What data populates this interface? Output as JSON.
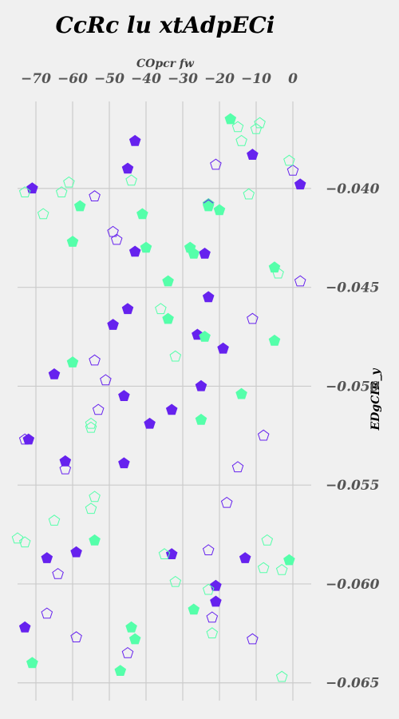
{
  "chart_data": {
    "type": "scatter",
    "title": "CcRc lu xtAdpECi",
    "xlabel": "COpcr fw",
    "ylabel": "EDgCIR_y",
    "xlim": [
      -75,
      5
    ],
    "ylim": [
      -0.0659,
      -0.0356
    ],
    "x_ticks": [
      -70,
      -60,
      -50,
      -40,
      -30,
      -20,
      -10,
      0
    ],
    "x_tick_labels": [
      "−70",
      "−60",
      "−50",
      "−40",
      "−30",
      "−20",
      "−10",
      "0"
    ],
    "y_ticks": [
      -0.04,
      -0.045,
      -0.05,
      -0.055,
      -0.06,
      -0.065
    ],
    "y_tick_labels": [
      "−0.040",
      "−0.045",
      "−0.050",
      "−0.055",
      "−0.060",
      "−0.065"
    ],
    "x_axis_position": "top",
    "y_axis_position": "right",
    "grid": true,
    "marker": "pentagon",
    "series": [
      {
        "color": "#6622ee",
        "filled": true,
        "points": [
          [
            -43,
            -0.0376
          ],
          [
            -45,
            -0.039
          ],
          [
            -71,
            -0.04
          ],
          [
            -11,
            -0.0383
          ],
          [
            2,
            -0.0398
          ],
          [
            -23,
            -0.0408
          ],
          [
            -43,
            -0.0432
          ],
          [
            -24,
            -0.0433
          ],
          [
            -23,
            -0.0455
          ],
          [
            -45,
            -0.0461
          ],
          [
            -49,
            -0.0469
          ],
          [
            -26,
            -0.0474
          ],
          [
            -19,
            -0.0481
          ],
          [
            -65,
            -0.0494
          ],
          [
            -25,
            -0.05
          ],
          [
            -46,
            -0.0505
          ],
          [
            -33,
            -0.0512
          ],
          [
            -39,
            -0.0519
          ],
          [
            -72,
            -0.0527
          ],
          [
            -62,
            -0.0538
          ],
          [
            -46,
            -0.0539
          ],
          [
            -67,
            -0.0587
          ],
          [
            -59,
            -0.0584
          ],
          [
            -33,
            -0.0585
          ],
          [
            -13,
            -0.0587
          ],
          [
            -21,
            -0.0601
          ],
          [
            -21,
            -0.0609
          ],
          [
            -73,
            -0.0622
          ]
        ]
      },
      {
        "color": "#6622ee",
        "filled": false,
        "points": [
          [
            -21,
            -0.0388
          ],
          [
            0,
            -0.0391
          ],
          [
            -54,
            -0.0404
          ],
          [
            -49,
            -0.0422
          ],
          [
            -48,
            -0.0426
          ],
          [
            2,
            -0.0447
          ],
          [
            -11,
            -0.0466
          ],
          [
            -54,
            -0.0487
          ],
          [
            -51,
            -0.0497
          ],
          [
            -53,
            -0.0512
          ],
          [
            -73,
            -0.0527
          ],
          [
            -8,
            -0.0525
          ],
          [
            -62,
            -0.0542
          ],
          [
            -15,
            -0.0541
          ],
          [
            -18,
            -0.0559
          ],
          [
            -23,
            -0.0583
          ],
          [
            -64,
            -0.0595
          ],
          [
            -67,
            -0.0615
          ],
          [
            -22,
            -0.0617
          ],
          [
            -59,
            -0.0627
          ],
          [
            -11,
            -0.0628
          ],
          [
            -45,
            -0.0635
          ]
        ]
      },
      {
        "color": "#55ffaa",
        "filled": true,
        "points": [
          [
            -17,
            -0.0365
          ],
          [
            -58,
            -0.0409
          ],
          [
            -23,
            -0.0409
          ],
          [
            -20,
            -0.0411
          ],
          [
            -41,
            -0.0413
          ],
          [
            -60,
            -0.0427
          ],
          [
            -40,
            -0.043
          ],
          [
            -28,
            -0.043
          ],
          [
            -27,
            -0.0433
          ],
          [
            -5,
            -0.044
          ],
          [
            -34,
            -0.0447
          ],
          [
            -34,
            -0.0466
          ],
          [
            -24,
            -0.0475
          ],
          [
            -5,
            -0.0477
          ],
          [
            -60,
            -0.0488
          ],
          [
            -14,
            -0.0504
          ],
          [
            -25,
            -0.0517
          ],
          [
            -54,
            -0.0578
          ],
          [
            -1,
            -0.0588
          ],
          [
            -27,
            -0.0613
          ],
          [
            -44,
            -0.0622
          ],
          [
            -43,
            -0.0628
          ],
          [
            -71,
            -0.064
          ],
          [
            -47,
            -0.0644
          ]
        ]
      },
      {
        "color": "#55ffaa",
        "filled": false,
        "points": [
          [
            -9,
            -0.0367
          ],
          [
            -15,
            -0.0369
          ],
          [
            -10,
            -0.037
          ],
          [
            -14,
            -0.0376
          ],
          [
            -1,
            -0.0386
          ],
          [
            -61,
            -0.0397
          ],
          [
            -44,
            -0.0396
          ],
          [
            -73,
            -0.0402
          ],
          [
            -63,
            -0.0402
          ],
          [
            -12,
            -0.0403
          ],
          [
            -23,
            -0.0408
          ],
          [
            -68,
            -0.0413
          ],
          [
            -4,
            -0.0443
          ],
          [
            -36,
            -0.0461
          ],
          [
            -32,
            -0.0485
          ],
          [
            -55,
            -0.0519
          ],
          [
            -55,
            -0.0521
          ],
          [
            -54,
            -0.0556
          ],
          [
            -55,
            -0.0562
          ],
          [
            -65,
            -0.0568
          ],
          [
            -75,
            -0.0577
          ],
          [
            -73,
            -0.0579
          ],
          [
            -7,
            -0.0578
          ],
          [
            -35,
            -0.0585
          ],
          [
            -32,
            -0.0599
          ],
          [
            -8,
            -0.0592
          ],
          [
            -3,
            -0.0593
          ],
          [
            -23,
            -0.0603
          ],
          [
            -22,
            -0.0625
          ],
          [
            -71,
            -0.064
          ],
          [
            -3,
            -0.0647
          ]
        ]
      }
    ]
  }
}
